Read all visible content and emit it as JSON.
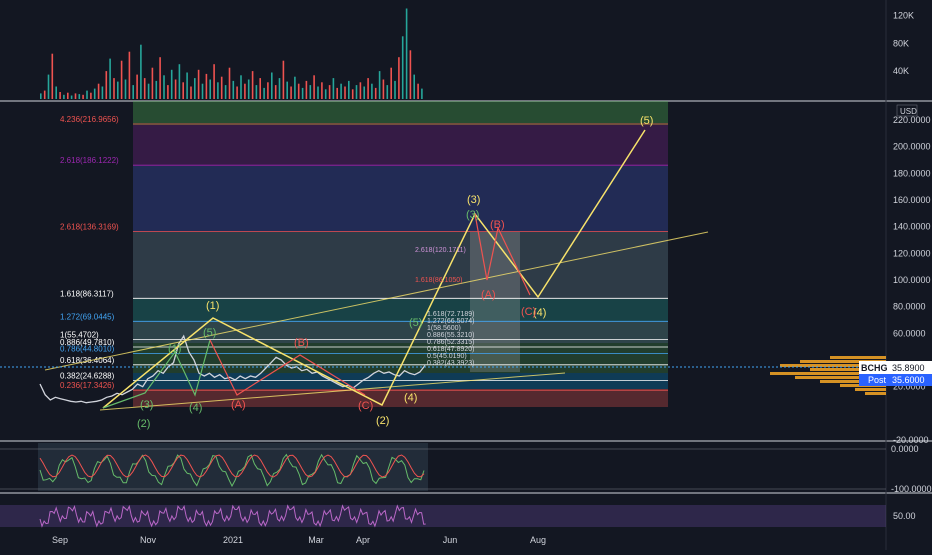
{
  "app": {
    "symbol_badge": "BCHG",
    "symbol_price": "35.8900",
    "post_badge": "Post",
    "post_price": "35.6000",
    "currency": "USD"
  },
  "colors": {
    "background": "#131722",
    "up": "#26a69a",
    "down": "#ef5350",
    "wave_yellow": "#f7e26b",
    "wave_green": "#66bb6a",
    "wave_red": "#ef5350",
    "rsi": "#ba68c8",
    "badge_symbol": "#ffffff",
    "badge_post": "#2962ff"
  },
  "chart_data": [
    {
      "type": "bar",
      "title": "Volume",
      "yaxis_ticks": [
        "120K",
        "80K",
        "40K"
      ],
      "ylim": [
        0,
        135000
      ],
      "x_dates": [
        "Sep",
        "Nov",
        "2021",
        "Mar",
        "Apr"
      ],
      "bars": [
        {
          "t": 0.0,
          "v": 8000,
          "c": "up"
        },
        {
          "t": 0.01,
          "v": 12000,
          "c": "down"
        },
        {
          "t": 0.02,
          "v": 35000,
          "c": "up"
        },
        {
          "t": 0.03,
          "v": 65000,
          "c": "down"
        },
        {
          "t": 0.04,
          "v": 18000,
          "c": "up"
        },
        {
          "t": 0.05,
          "v": 10000,
          "c": "down"
        },
        {
          "t": 0.06,
          "v": 6000,
          "c": "up"
        },
        {
          "t": 0.07,
          "v": 9000,
          "c": "down"
        },
        {
          "t": 0.08,
          "v": 5000,
          "c": "up"
        },
        {
          "t": 0.09,
          "v": 8000,
          "c": "down"
        },
        {
          "t": 0.1,
          "v": 7000,
          "c": "up"
        },
        {
          "t": 0.11,
          "v": 6000,
          "c": "down"
        },
        {
          "t": 0.12,
          "v": 12000,
          "c": "up"
        },
        {
          "t": 0.13,
          "v": 9000,
          "c": "down"
        },
        {
          "t": 0.14,
          "v": 15000,
          "c": "up"
        },
        {
          "t": 0.15,
          "v": 22000,
          "c": "down"
        },
        {
          "t": 0.16,
          "v": 18000,
          "c": "up"
        },
        {
          "t": 0.17,
          "v": 40000,
          "c": "down"
        },
        {
          "t": 0.18,
          "v": 58000,
          "c": "up"
        },
        {
          "t": 0.19,
          "v": 30000,
          "c": "down"
        },
        {
          "t": 0.2,
          "v": 25000,
          "c": "up"
        },
        {
          "t": 0.21,
          "v": 55000,
          "c": "down"
        },
        {
          "t": 0.22,
          "v": 28000,
          "c": "up"
        },
        {
          "t": 0.23,
          "v": 68000,
          "c": "down"
        },
        {
          "t": 0.24,
          "v": 20000,
          "c": "up"
        },
        {
          "t": 0.25,
          "v": 35000,
          "c": "down"
        },
        {
          "t": 0.26,
          "v": 78000,
          "c": "up"
        },
        {
          "t": 0.27,
          "v": 30000,
          "c": "down"
        },
        {
          "t": 0.28,
          "v": 22000,
          "c": "up"
        },
        {
          "t": 0.29,
          "v": 45000,
          "c": "down"
        },
        {
          "t": 0.3,
          "v": 26000,
          "c": "up"
        },
        {
          "t": 0.31,
          "v": 60000,
          "c": "down"
        },
        {
          "t": 0.32,
          "v": 34000,
          "c": "up"
        },
        {
          "t": 0.33,
          "v": 20000,
          "c": "down"
        },
        {
          "t": 0.34,
          "v": 42000,
          "c": "up"
        },
        {
          "t": 0.35,
          "v": 28000,
          "c": "down"
        },
        {
          "t": 0.36,
          "v": 50000,
          "c": "up"
        },
        {
          "t": 0.37,
          "v": 24000,
          "c": "down"
        },
        {
          "t": 0.38,
          "v": 38000,
          "c": "up"
        },
        {
          "t": 0.39,
          "v": 18000,
          "c": "down"
        },
        {
          "t": 0.4,
          "v": 30000,
          "c": "up"
        },
        {
          "t": 0.41,
          "v": 42000,
          "c": "down"
        },
        {
          "t": 0.42,
          "v": 22000,
          "c": "up"
        },
        {
          "t": 0.43,
          "v": 36000,
          "c": "down"
        },
        {
          "t": 0.44,
          "v": 28000,
          "c": "up"
        },
        {
          "t": 0.45,
          "v": 50000,
          "c": "down"
        },
        {
          "t": 0.46,
          "v": 24000,
          "c": "up"
        },
        {
          "t": 0.47,
          "v": 32000,
          "c": "down"
        },
        {
          "t": 0.48,
          "v": 20000,
          "c": "up"
        },
        {
          "t": 0.49,
          "v": 45000,
          "c": "down"
        },
        {
          "t": 0.5,
          "v": 26000,
          "c": "up"
        },
        {
          "t": 0.51,
          "v": 18000,
          "c": "down"
        },
        {
          "t": 0.52,
          "v": 34000,
          "c": "up"
        },
        {
          "t": 0.53,
          "v": 22000,
          "c": "down"
        },
        {
          "t": 0.54,
          "v": 28000,
          "c": "up"
        },
        {
          "t": 0.55,
          "v": 40000,
          "c": "down"
        },
        {
          "t": 0.56,
          "v": 20000,
          "c": "up"
        },
        {
          "t": 0.57,
          "v": 30000,
          "c": "down"
        },
        {
          "t": 0.58,
          "v": 16000,
          "c": "up"
        },
        {
          "t": 0.59,
          "v": 24000,
          "c": "down"
        },
        {
          "t": 0.6,
          "v": 38000,
          "c": "up"
        },
        {
          "t": 0.61,
          "v": 20000,
          "c": "down"
        },
        {
          "t": 0.62,
          "v": 30000,
          "c": "up"
        },
        {
          "t": 0.63,
          "v": 55000,
          "c": "down"
        },
        {
          "t": 0.64,
          "v": 25000,
          "c": "up"
        },
        {
          "t": 0.65,
          "v": 18000,
          "c": "down"
        },
        {
          "t": 0.66,
          "v": 32000,
          "c": "up"
        },
        {
          "t": 0.67,
          "v": 22000,
          "c": "down"
        },
        {
          "t": 0.68,
          "v": 16000,
          "c": "up"
        },
        {
          "t": 0.69,
          "v": 26000,
          "c": "down"
        },
        {
          "t": 0.7,
          "v": 20000,
          "c": "up"
        },
        {
          "t": 0.71,
          "v": 34000,
          "c": "down"
        },
        {
          "t": 0.72,
          "v": 18000,
          "c": "up"
        },
        {
          "t": 0.73,
          "v": 24000,
          "c": "down"
        },
        {
          "t": 0.74,
          "v": 14000,
          "c": "up"
        },
        {
          "t": 0.75,
          "v": 20000,
          "c": "down"
        },
        {
          "t": 0.76,
          "v": 30000,
          "c": "up"
        },
        {
          "t": 0.77,
          "v": 16000,
          "c": "down"
        },
        {
          "t": 0.78,
          "v": 22000,
          "c": "up"
        },
        {
          "t": 0.79,
          "v": 18000,
          "c": "down"
        },
        {
          "t": 0.8,
          "v": 26000,
          "c": "up"
        },
        {
          "t": 0.81,
          "v": 14000,
          "c": "down"
        },
        {
          "t": 0.82,
          "v": 20000,
          "c": "up"
        },
        {
          "t": 0.83,
          "v": 24000,
          "c": "down"
        },
        {
          "t": 0.84,
          "v": 18000,
          "c": "up"
        },
        {
          "t": 0.85,
          "v": 30000,
          "c": "down"
        },
        {
          "t": 0.86,
          "v": 22000,
          "c": "up"
        },
        {
          "t": 0.87,
          "v": 16000,
          "c": "down"
        },
        {
          "t": 0.88,
          "v": 40000,
          "c": "up"
        },
        {
          "t": 0.89,
          "v": 28000,
          "c": "down"
        },
        {
          "t": 0.9,
          "v": 20000,
          "c": "up"
        },
        {
          "t": 0.91,
          "v": 45000,
          "c": "down"
        },
        {
          "t": 0.92,
          "v": 26000,
          "c": "up"
        },
        {
          "t": 0.93,
          "v": 60000,
          "c": "down"
        },
        {
          "t": 0.94,
          "v": 90000,
          "c": "up"
        },
        {
          "t": 0.95,
          "v": 130000,
          "c": "up"
        },
        {
          "t": 0.96,
          "v": 70000,
          "c": "down"
        },
        {
          "t": 0.97,
          "v": 35000,
          "c": "up"
        },
        {
          "t": 0.98,
          "v": 22000,
          "c": "down"
        },
        {
          "t": 0.99,
          "v": 15000,
          "c": "up"
        }
      ]
    },
    {
      "type": "line",
      "title": "BCHG price with Elliott wave projection",
      "unit": "USD",
      "ylim": [
        -20,
        230
      ],
      "y_ticks": [
        220,
        200,
        180,
        160,
        140,
        120,
        100,
        80,
        60,
        40,
        20,
        -20
      ],
      "y_tick_labels": [
        "220.0000",
        "200.0000",
        "180.0000",
        "160.0000",
        "140.0000",
        "120.0000",
        "100.0000",
        "80.0000",
        "60.0000",
        "",
        "20.0000",
        "-20.0000"
      ],
      "x_labels": [
        "Sep",
        "Nov",
        "2021",
        "Mar",
        "Apr",
        "Jun",
        "Aug"
      ],
      "price": [
        [
          0.0,
          22
        ],
        [
          0.01,
          14
        ],
        [
          0.02,
          10
        ],
        [
          0.03,
          12
        ],
        [
          0.04,
          11
        ],
        [
          0.05,
          10
        ],
        [
          0.06,
          9
        ],
        [
          0.07,
          8.5
        ],
        [
          0.08,
          9
        ],
        [
          0.09,
          8
        ],
        [
          0.1,
          8.5
        ],
        [
          0.11,
          9
        ],
        [
          0.12,
          10
        ],
        [
          0.13,
          12
        ],
        [
          0.14,
          13
        ],
        [
          0.15,
          15
        ],
        [
          0.16,
          14
        ],
        [
          0.17,
          16
        ],
        [
          0.18,
          18
        ],
        [
          0.19,
          22
        ],
        [
          0.2,
          20
        ],
        [
          0.21,
          26
        ],
        [
          0.22,
          28
        ],
        [
          0.23,
          32
        ],
        [
          0.24,
          30
        ],
        [
          0.25,
          35
        ],
        [
          0.26,
          38
        ],
        [
          0.27,
          52
        ],
        [
          0.28,
          58
        ],
        [
          0.29,
          46
        ],
        [
          0.3,
          40
        ],
        [
          0.31,
          30
        ],
        [
          0.32,
          28
        ],
        [
          0.33,
          30
        ],
        [
          0.34,
          27
        ],
        [
          0.35,
          29
        ],
        [
          0.36,
          26
        ],
        [
          0.37,
          27
        ],
        [
          0.38,
          25
        ],
        [
          0.39,
          28
        ],
        [
          0.4,
          26
        ],
        [
          0.41,
          28
        ],
        [
          0.42,
          27
        ],
        [
          0.43,
          30
        ],
        [
          0.44,
          34
        ],
        [
          0.45,
          38
        ],
        [
          0.46,
          42
        ],
        [
          0.47,
          40
        ],
        [
          0.48,
          36
        ],
        [
          0.49,
          34
        ],
        [
          0.5,
          35
        ],
        [
          0.51,
          32
        ],
        [
          0.52,
          33
        ],
        [
          0.53,
          30
        ],
        [
          0.54,
          31
        ],
        [
          0.55,
          28
        ],
        [
          0.56,
          26
        ],
        [
          0.57,
          24
        ],
        [
          0.58,
          22
        ],
        [
          0.59,
          20
        ],
        [
          0.6,
          21
        ],
        [
          0.61,
          19
        ],
        [
          0.62,
          22
        ],
        [
          0.63,
          25
        ],
        [
          0.64,
          27
        ],
        [
          0.65,
          30
        ],
        [
          0.66,
          32
        ],
        [
          0.67,
          30
        ],
        [
          0.68,
          31
        ],
        [
          0.69,
          29
        ],
        [
          0.7,
          28
        ],
        [
          0.71,
          32
        ],
        [
          0.72,
          30
        ],
        [
          0.73,
          29
        ],
        [
          0.74,
          31
        ],
        [
          0.75,
          35.89
        ]
      ],
      "fib_levels": [
        {
          "label": "4.236(216.9656)",
          "value": 216.97,
          "color": "#ef5350"
        },
        {
          "label": "2.618(186.1222)",
          "value": 186.12,
          "color": "#9c27b0"
        },
        {
          "label": "2.618(136.3169)",
          "value": 136.32,
          "color": "#ef5350"
        },
        {
          "label": "1.618(86.3117)",
          "value": 86.31,
          "color": "#ffffff"
        },
        {
          "label": "1.272(69.0445)",
          "value": 69.04,
          "color": "#42a5f5"
        },
        {
          "label": "1(55.4702)",
          "value": 55.47,
          "color": "#ffffff"
        },
        {
          "label": "0.886(49.7810)",
          "value": 49.78,
          "color": "#ffffff"
        },
        {
          "label": "0.786(44.8010)",
          "value": 44.8,
          "color": "#42a5f5"
        },
        {
          "label": "0.618(36.4064)",
          "value": 36.41,
          "color": "#ffffff"
        },
        {
          "label": "0.382(24.6288)",
          "value": 24.63,
          "color": "#ffffff"
        },
        {
          "label": "0.236(17.3426)",
          "value": 17.34,
          "color": "#ef5350"
        }
      ],
      "secondary_fib_labels": [
        "1.618(72.7189)",
        "1.272(66.5074)",
        "1(58.5600)",
        "0.886(55.3210)",
        "0.786(52.3315)",
        "0.618(47.8920)",
        "0.5(45.0190)",
        "0.382(43.3923)"
      ],
      "upper_fib_labels": [
        "2.618(120.1711)",
        "1.618(86.1050)"
      ],
      "wave_labels": [
        "(1)",
        "(2)",
        "(3)",
        "(4)",
        "(5)",
        "(A)",
        "(B)",
        "(C)",
        "(1)",
        "(2)",
        "(3)",
        "(4)",
        "(5)",
        "(A)",
        "(B)",
        "(C)",
        "(3)",
        "(4)",
        "(5)",
        "(A)",
        "(B)",
        "(C)",
        "(4)",
        "(5)"
      ]
    },
    {
      "type": "area",
      "title": "Oscillator",
      "y_tick_labels": [
        "0.0000",
        "-100.0000"
      ]
    },
    {
      "type": "line",
      "title": "RSI",
      "y_tick_labels": [
        "50.00"
      ]
    }
  ]
}
